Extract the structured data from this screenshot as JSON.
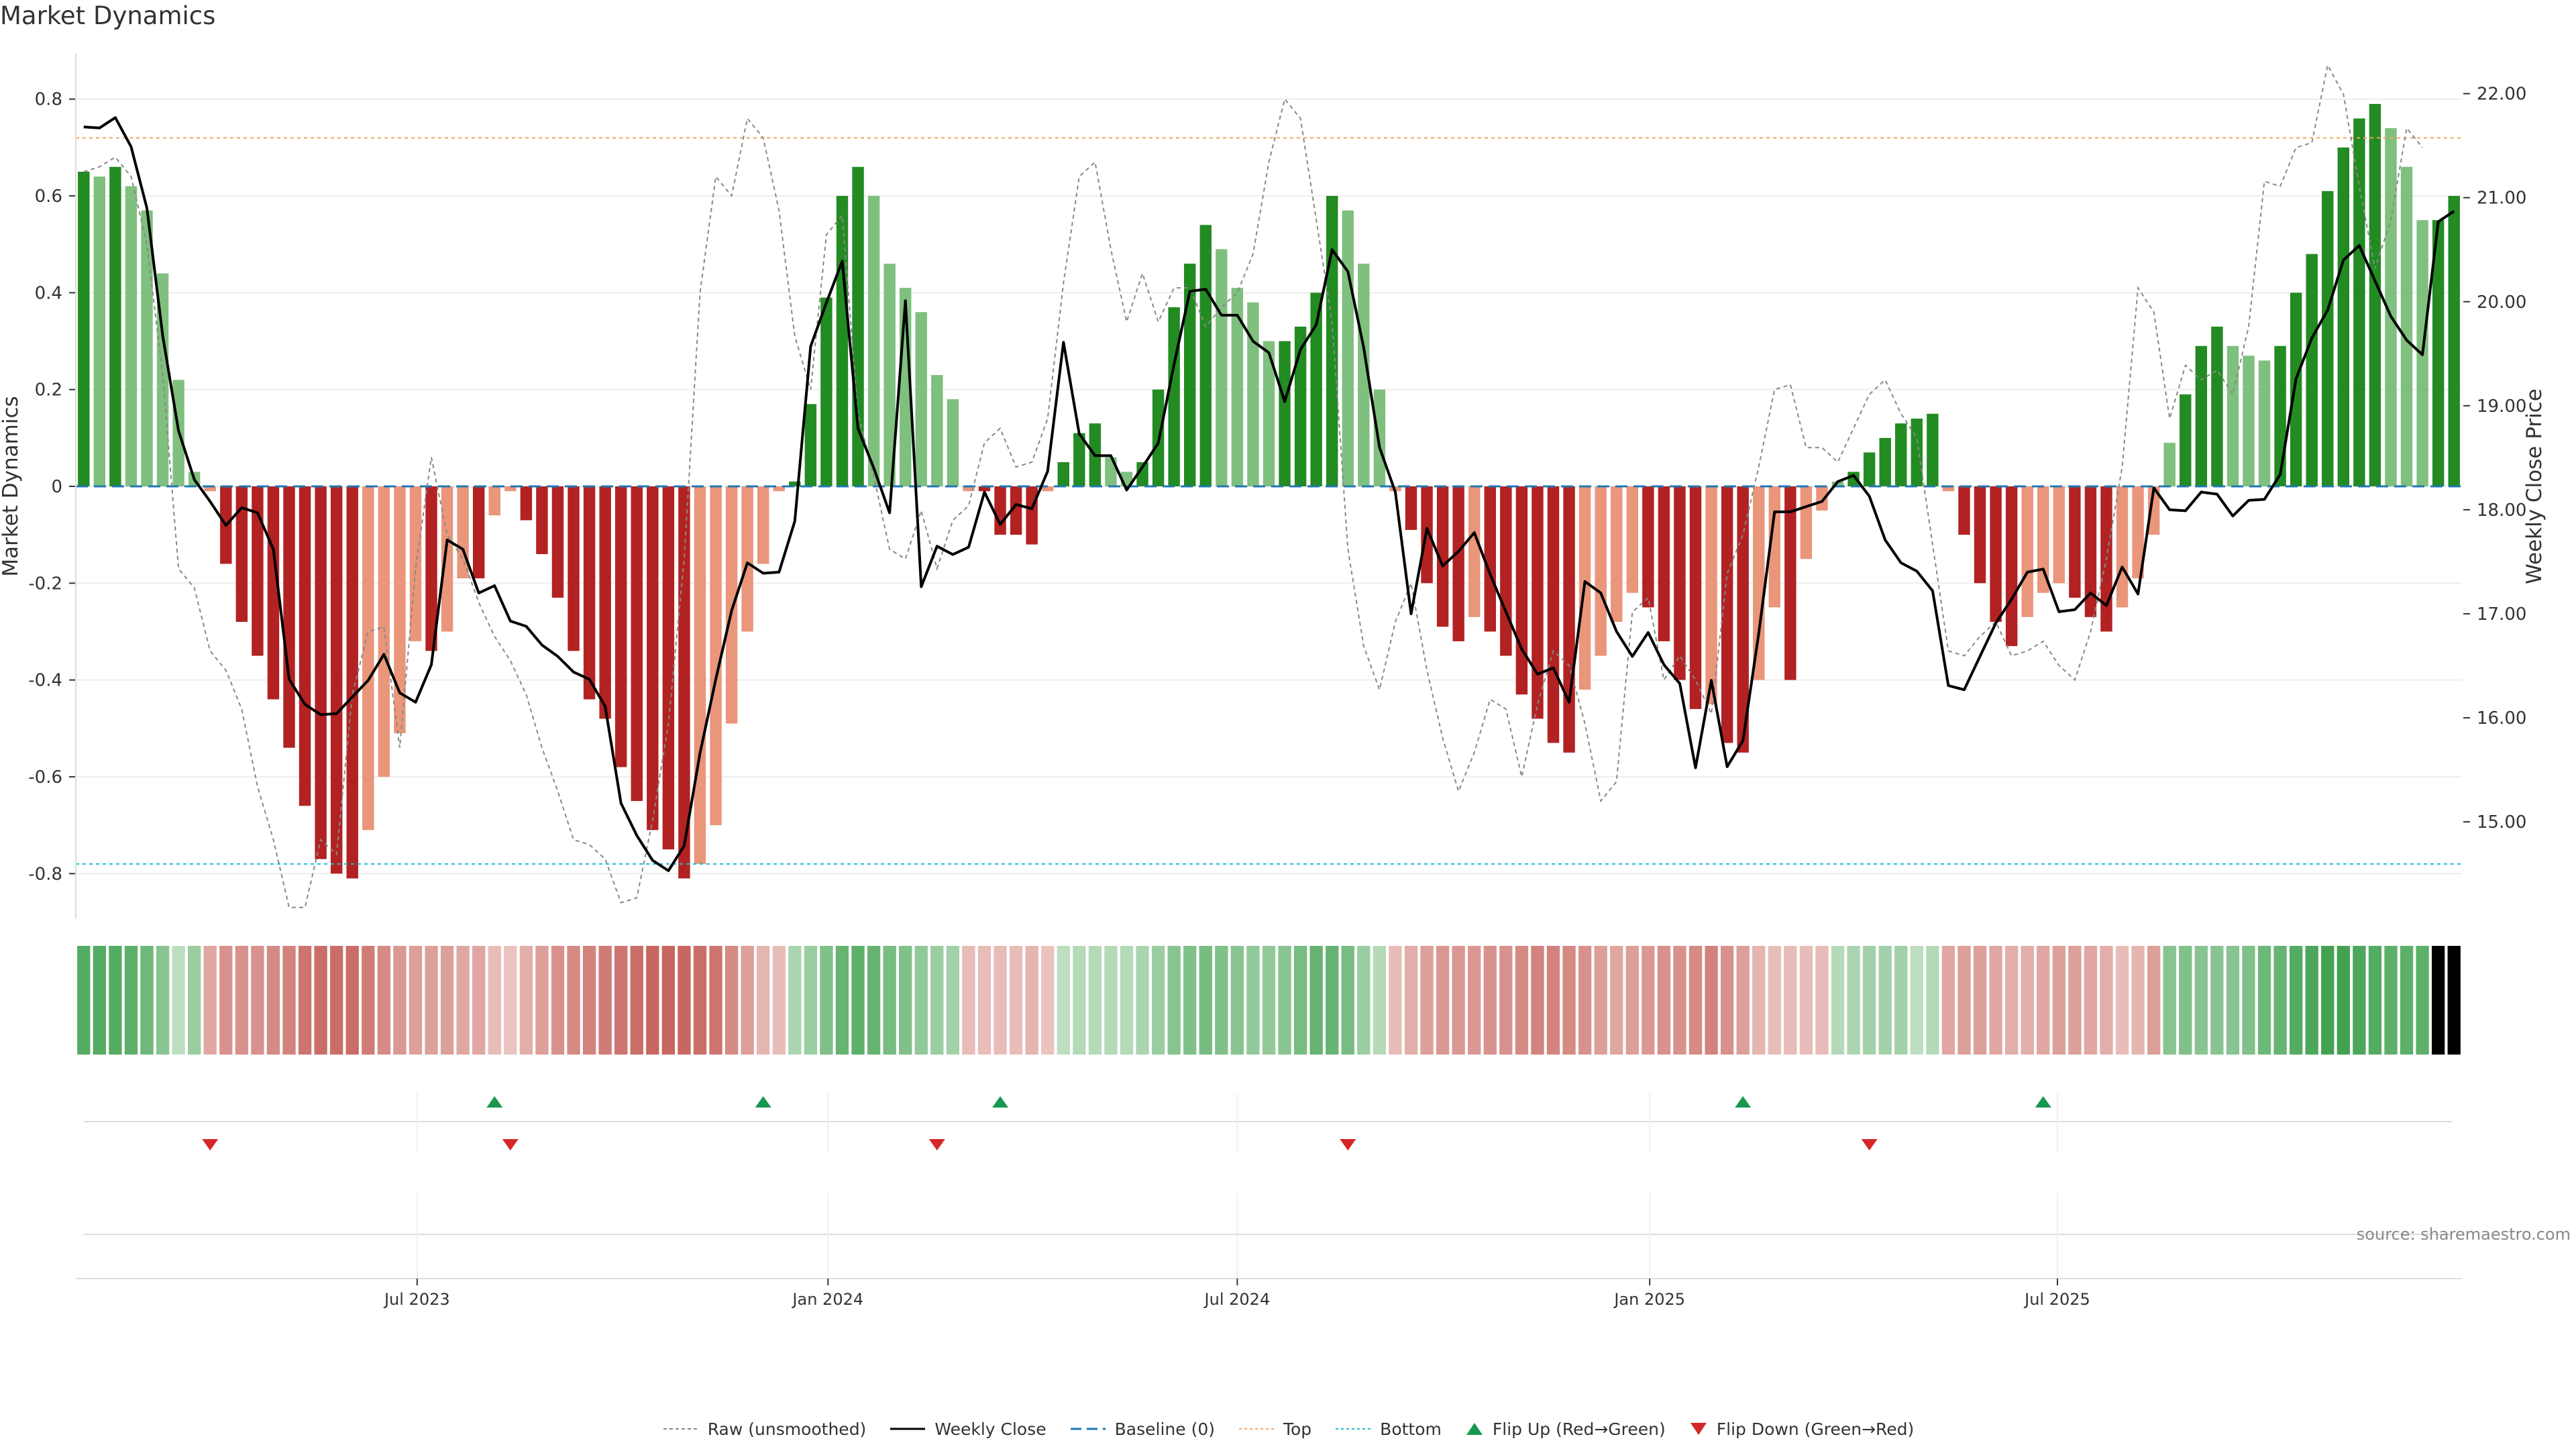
{
  "title": "Market Dynamics",
  "source": "source: sharemaestro.com",
  "colors": {
    "pos_strong": "#228B22",
    "pos_weak": "#7FC07F",
    "neg_strong": "#B22222",
    "neg_weak": "#E9967A",
    "close": "#000000",
    "raw": "#888888",
    "baseline": "#1f77b4",
    "top": "#f4a460",
    "bottom": "#17becf",
    "flip_up": "#1a9850",
    "flip_down": "#d62728"
  },
  "legend": {
    "raw": "Raw (unsmoothed)",
    "close": "Weekly Close",
    "baseline": "Baseline (0)",
    "top": "Top",
    "bottom": "Bottom",
    "flip_up": "Flip Up (Red→Green)",
    "flip_down": "Flip Down (Green→Red)"
  },
  "chart_data": {
    "type": "bar",
    "ylabel": "Market Dynamics",
    "y2label": "Weekly Close Price",
    "ylim": [
      -0.88,
      0.88
    ],
    "y2lim": [
      14.13,
      22.32
    ],
    "yticks": [
      "0.8",
      "0.6",
      "0.4",
      "0.2",
      "0",
      "-0.2",
      "-0.4",
      "-0.6",
      "-0.8"
    ],
    "y2ticks": [
      "22.00",
      "21.00",
      "20.00",
      "19.00",
      "18.00",
      "17.00",
      "16.00",
      "15.00"
    ],
    "xticks": [
      "Jul 2023",
      "Jan 2024",
      "Jul 2024",
      "Jan 2025",
      "Jul 2025"
    ],
    "xtick_weeks": [
      21.1,
      47.1,
      73.0,
      99.1,
      124.9
    ],
    "top_level": 0.72,
    "bottom_level": -0.78,
    "baseline": 0,
    "values": [
      0.65,
      0.64,
      0.66,
      0.62,
      0.57,
      0.44,
      0.22,
      0.03,
      -0.01,
      -0.16,
      -0.28,
      -0.35,
      -0.44,
      -0.54,
      -0.66,
      -0.77,
      -0.8,
      -0.81,
      -0.71,
      -0.6,
      -0.51,
      -0.32,
      -0.34,
      -0.3,
      -0.19,
      -0.19,
      -0.06,
      -0.01,
      -0.07,
      -0.14,
      -0.23,
      -0.34,
      -0.44,
      -0.48,
      -0.58,
      -0.65,
      -0.71,
      -0.75,
      -0.81,
      -0.78,
      -0.7,
      -0.49,
      -0.3,
      -0.16,
      -0.01,
      0.01,
      0.17,
      0.39,
      0.6,
      0.66,
      0.6,
      0.46,
      0.41,
      0.36,
      0.23,
      0.18,
      -0.01,
      -0.01,
      -0.1,
      -0.1,
      -0.12,
      -0.01,
      0.05,
      0.11,
      0.13,
      0.06,
      0.03,
      0.05,
      0.2,
      0.37,
      0.46,
      0.54,
      0.49,
      0.41,
      0.38,
      0.3,
      0.3,
      0.33,
      0.4,
      0.6,
      0.57,
      0.46,
      0.2,
      -0.01,
      -0.09,
      -0.2,
      -0.29,
      -0.32,
      -0.27,
      -0.3,
      -0.35,
      -0.43,
      -0.48,
      -0.53,
      -0.55,
      -0.42,
      -0.35,
      -0.28,
      -0.22,
      -0.25,
      -0.32,
      -0.4,
      -0.46,
      -0.45,
      -0.53,
      -0.55,
      -0.4,
      -0.25,
      -0.4,
      -0.15,
      -0.05,
      0.01,
      0.03,
      0.07,
      0.1,
      0.13,
      0.14,
      0.15,
      -0.01,
      -0.1,
      -0.2,
      -0.28,
      -0.33,
      -0.27,
      -0.22,
      -0.2,
      -0.23,
      -0.27,
      -0.3,
      -0.25,
      -0.19,
      -0.1,
      0.09,
      0.19,
      0.29,
      0.33,
      0.29,
      0.27,
      0.26,
      0.29,
      0.4,
      0.48,
      0.61,
      0.7,
      0.76,
      0.79,
      0.74,
      0.66,
      0.55,
      0.55,
      0.6
    ],
    "close": [
      21.68,
      21.67,
      21.77,
      21.49,
      20.9,
      19.67,
      18.76,
      18.29,
      18.08,
      17.85,
      18.02,
      17.97,
      17.62,
      16.37,
      16.13,
      16.03,
      16.04,
      16.2,
      16.36,
      16.61,
      16.24,
      16.15,
      16.51,
      17.71,
      17.62,
      17.2,
      17.27,
      16.93,
      16.88,
      16.7,
      16.59,
      16.44,
      16.37,
      16.11,
      15.18,
      14.87,
      14.63,
      14.53,
      14.77,
      15.66,
      16.37,
      17.03,
      17.49,
      17.39,
      17.4,
      17.89,
      19.57,
      19.99,
      20.39,
      18.78,
      18.4,
      17.97,
      20.01,
      17.26,
      17.65,
      17.57,
      17.64,
      18.17,
      17.86,
      18.05,
      18.01,
      18.37,
      19.61,
      18.73,
      18.52,
      18.52,
      18.19,
      18.41,
      18.64,
      19.4,
      20.1,
      20.12,
      19.87,
      19.87,
      19.62,
      19.51,
      19.04,
      19.54,
      19.78,
      20.5,
      20.29,
      19.56,
      18.6,
      18.17,
      17.0,
      17.82,
      17.46,
      17.6,
      17.78,
      17.38,
      17.02,
      16.66,
      16.42,
      16.48,
      16.15,
      17.31,
      17.2,
      16.83,
      16.59,
      16.82,
      16.51,
      16.33,
      15.52,
      16.36,
      15.53,
      15.78,
      16.81,
      17.98,
      17.98,
      18.03,
      18.08,
      18.27,
      18.33,
      18.13,
      17.71,
      17.49,
      17.41,
      17.22,
      16.31,
      16.27,
      16.59,
      16.91,
      17.14,
      17.4,
      17.43,
      17.02,
      17.04,
      17.2,
      17.08,
      17.45,
      17.19,
      18.21,
      18.0,
      17.99,
      18.17,
      18.15,
      17.94,
      18.09,
      18.1,
      18.34,
      19.26,
      19.65,
      19.92,
      20.4,
      20.54,
      20.2,
      19.86,
      19.63,
      19.49,
      20.77,
      20.87
    ],
    "raw": [
      0.65,
      0.66,
      0.68,
      0.64,
      0.5,
      0.23,
      -0.17,
      -0.21,
      -0.34,
      -0.38,
      -0.46,
      -0.62,
      -0.73,
      -0.87,
      -0.87,
      -0.73,
      -0.76,
      -0.43,
      -0.3,
      -0.29,
      -0.54,
      -0.17,
      0.06,
      -0.1,
      -0.15,
      -0.24,
      -0.31,
      -0.36,
      -0.43,
      -0.54,
      -0.63,
      -0.73,
      -0.74,
      -0.77,
      -0.86,
      -0.85,
      -0.69,
      -0.49,
      -0.15,
      0.4,
      0.64,
      0.6,
      0.76,
      0.72,
      0.57,
      0.31,
      0.2,
      0.52,
      0.56,
      0.15,
      0.02,
      -0.13,
      -0.15,
      -0.05,
      -0.17,
      -0.07,
      -0.04,
      0.09,
      0.12,
      0.04,
      0.05,
      0.14,
      0.42,
      0.64,
      0.67,
      0.49,
      0.34,
      0.44,
      0.34,
      0.41,
      0.41,
      0.33,
      0.37,
      0.4,
      0.48,
      0.67,
      0.8,
      0.76,
      0.55,
      0.34,
      -0.13,
      -0.33,
      -0.42,
      -0.28,
      -0.2,
      -0.38,
      -0.52,
      -0.63,
      -0.55,
      -0.44,
      -0.46,
      -0.6,
      -0.45,
      -0.34,
      -0.37,
      -0.49,
      -0.65,
      -0.61,
      -0.26,
      -0.23,
      -0.4,
      -0.35,
      -0.4,
      -0.47,
      -0.18,
      -0.1,
      0.04,
      0.2,
      0.21,
      0.08,
      0.08,
      0.05,
      0.12,
      0.19,
      0.22,
      0.15,
      0.1,
      -0.12,
      -0.34,
      -0.35,
      -0.31,
      -0.28,
      -0.35,
      -0.34,
      -0.32,
      -0.37,
      -0.4,
      -0.3,
      -0.15,
      0.04,
      0.41,
      0.36,
      0.14,
      0.25,
      0.22,
      0.24,
      0.19,
      0.33,
      0.63,
      0.62,
      0.7,
      0.71,
      0.87,
      0.81,
      0.62,
      0.45,
      0.55,
      0.74,
      0.7
    ],
    "heat_levels": [
      0.85,
      0.85,
      0.85,
      0.8,
      0.7,
      0.55,
      0.25,
      0.45,
      0.4,
      0.55,
      0.55,
      0.55,
      0.6,
      0.65,
      0.75,
      0.8,
      0.8,
      0.8,
      0.7,
      0.6,
      0.5,
      0.45,
      0.45,
      0.45,
      0.4,
      0.4,
      0.25,
      0.2,
      0.35,
      0.45,
      0.55,
      0.6,
      0.65,
      0.7,
      0.75,
      0.8,
      0.85,
      0.85,
      0.85,
      0.8,
      0.75,
      0.6,
      0.45,
      0.3,
      0.25,
      0.35,
      0.45,
      0.6,
      0.75,
      0.8,
      0.75,
      0.65,
      0.6,
      0.5,
      0.45,
      0.4,
      0.25,
      0.25,
      0.25,
      0.25,
      0.3,
      0.2,
      0.25,
      0.3,
      0.3,
      0.3,
      0.3,
      0.35,
      0.45,
      0.55,
      0.6,
      0.65,
      0.6,
      0.55,
      0.5,
      0.5,
      0.55,
      0.65,
      0.75,
      0.75,
      0.65,
      0.45,
      0.3,
      0.25,
      0.35,
      0.45,
      0.5,
      0.5,
      0.5,
      0.55,
      0.55,
      0.6,
      0.65,
      0.65,
      0.6,
      0.55,
      0.45,
      0.4,
      0.45,
      0.5,
      0.55,
      0.55,
      0.6,
      0.65,
      0.55,
      0.45,
      0.3,
      0.25,
      0.25,
      0.25,
      0.25,
      0.3,
      0.35,
      0.4,
      0.4,
      0.4,
      0.25,
      0.3,
      0.4,
      0.45,
      0.45,
      0.4,
      0.35,
      0.35,
      0.4,
      0.45,
      0.45,
      0.4,
      0.35,
      0.25,
      0.3,
      0.45,
      0.55,
      0.6,
      0.55,
      0.55,
      0.55,
      0.6,
      0.7,
      0.75,
      0.85,
      0.9,
      0.95,
      0.95,
      0.9,
      0.85,
      0.8,
      0.8,
      0.8
    ],
    "flip_up_weeks": [
      26,
      43,
      58,
      105,
      124
    ],
    "flip_down_weeks": [
      8,
      27,
      54,
      80,
      113
    ]
  }
}
